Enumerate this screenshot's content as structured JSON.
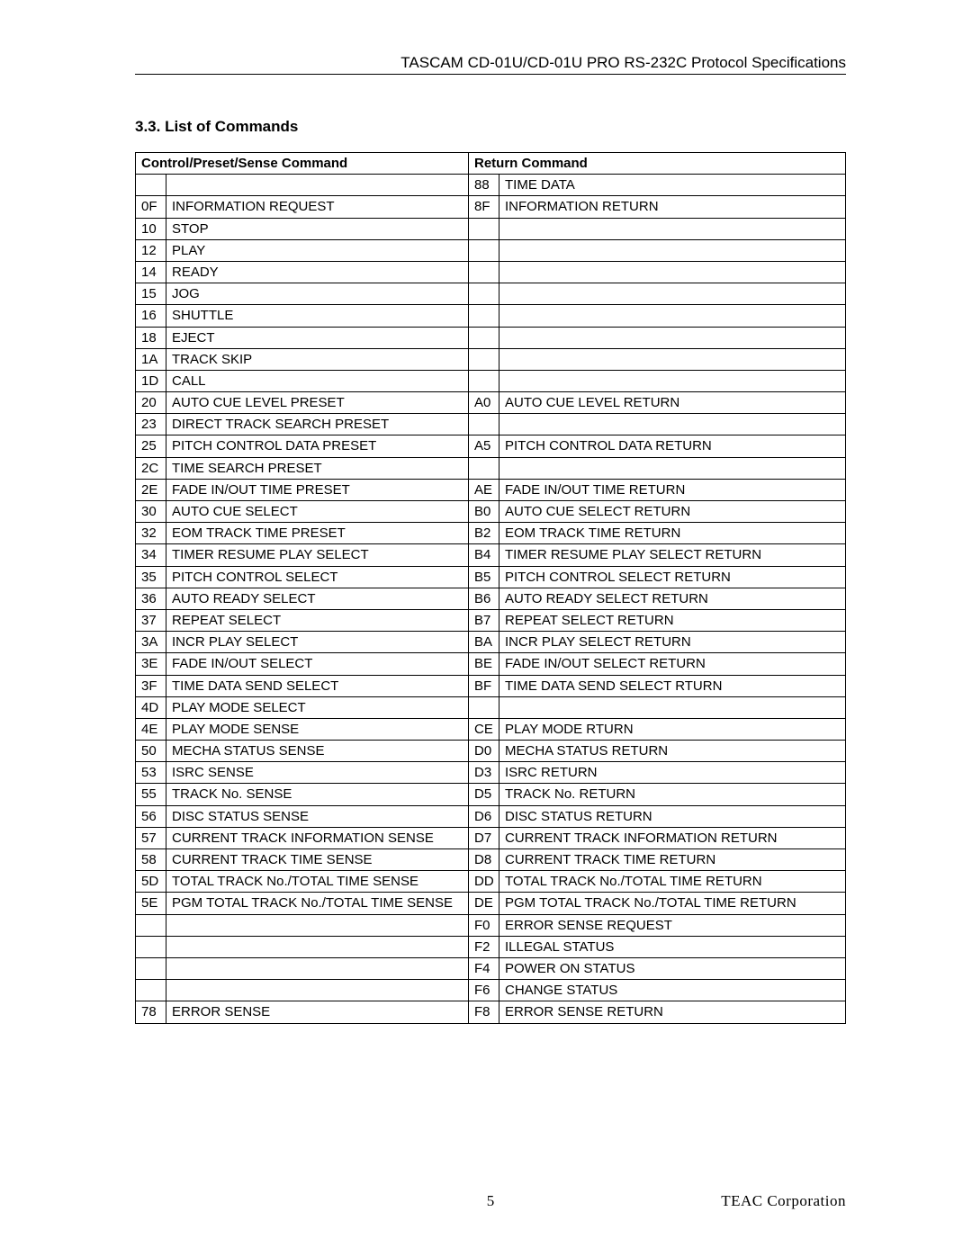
{
  "header": {
    "title": "TASCAM CD-01U/CD-01U PRO RS-232C Protocol Specifications"
  },
  "section": {
    "number_title": "3.3. List of Commands"
  },
  "table": {
    "headers": {
      "left": "Control/Preset/Sense Command",
      "right": "Return Command"
    },
    "rows": [
      {
        "lc": "",
        "ln": "",
        "rc": "88",
        "rn": "TIME DATA"
      },
      {
        "lc": "0F",
        "ln": "INFORMATION REQUEST",
        "rc": "8F",
        "rn": "INFORMATION RETURN"
      },
      {
        "lc": "10",
        "ln": "STOP",
        "rc": "",
        "rn": ""
      },
      {
        "lc": "12",
        "ln": "PLAY",
        "rc": "",
        "rn": ""
      },
      {
        "lc": "14",
        "ln": "READY",
        "rc": "",
        "rn": ""
      },
      {
        "lc": "15",
        "ln": "JOG",
        "rc": "",
        "rn": ""
      },
      {
        "lc": "16",
        "ln": "SHUTTLE",
        "rc": "",
        "rn": ""
      },
      {
        "lc": "18",
        "ln": "EJECT",
        "rc": "",
        "rn": ""
      },
      {
        "lc": "1A",
        "ln": "TRACK SKIP",
        "rc": "",
        "rn": ""
      },
      {
        "lc": "1D",
        "ln": "CALL",
        "rc": "",
        "rn": ""
      },
      {
        "lc": "20",
        "ln": "AUTO CUE LEVEL PRESET",
        "rc": "A0",
        "rn": "AUTO CUE LEVEL RETURN"
      },
      {
        "lc": "23",
        "ln": "DIRECT TRACK SEARCH PRESET",
        "rc": "",
        "rn": ""
      },
      {
        "lc": "25",
        "ln": "PITCH CONTROL DATA PRESET",
        "rc": "A5",
        "rn": "PITCH CONTROL DATA RETURN"
      },
      {
        "lc": "2C",
        "ln": "TIME SEARCH PRESET",
        "rc": "",
        "rn": ""
      },
      {
        "lc": "2E",
        "ln": "FADE IN/OUT TIME PRESET",
        "rc": "AE",
        "rn": "FADE IN/OUT TIME RETURN"
      },
      {
        "lc": "30",
        "ln": "AUTO CUE SELECT",
        "rc": "B0",
        "rn": "AUTO CUE SELECT RETURN"
      },
      {
        "lc": "32",
        "ln": "EOM TRACK TIME PRESET",
        "rc": "B2",
        "rn": "EOM TRACK TIME RETURN"
      },
      {
        "lc": "34",
        "ln": "TIMER RESUME PLAY SELECT",
        "rc": "B4",
        "rn": "TIMER RESUME PLAY SELECT RETURN"
      },
      {
        "lc": "35",
        "ln": "PITCH CONTROL SELECT",
        "rc": "B5",
        "rn": "PITCH CONTROL SELECT RETURN"
      },
      {
        "lc": "36",
        "ln": "AUTO READY SELECT",
        "rc": "B6",
        "rn": "AUTO READY SELECT RETURN"
      },
      {
        "lc": "37",
        "ln": "REPEAT SELECT",
        "rc": "B7",
        "rn": "REPEAT SELECT RETURN"
      },
      {
        "lc": "3A",
        "ln": "INCR PLAY SELECT",
        "rc": "BA",
        "rn": "INCR PLAY SELECT RETURN"
      },
      {
        "lc": "3E",
        "ln": "FADE IN/OUT SELECT",
        "rc": "BE",
        "rn": "FADE IN/OUT SELECT RETURN"
      },
      {
        "lc": "3F",
        "ln": "TIME DATA SEND SELECT",
        "rc": "BF",
        "rn": "TIME DATA SEND SELECT RTURN"
      },
      {
        "lc": "4D",
        "ln": "PLAY MODE SELECT",
        "rc": "",
        "rn": ""
      },
      {
        "lc": "4E",
        "ln": "PLAY MODE SENSE",
        "rc": "CE",
        "rn": "PLAY MODE RTURN"
      },
      {
        "lc": "50",
        "ln": "MECHA STATUS SENSE",
        "rc": "D0",
        "rn": "MECHA STATUS RETURN"
      },
      {
        "lc": "53",
        "ln": "ISRC SENSE",
        "rc": "D3",
        "rn": "ISRC RETURN"
      },
      {
        "lc": "55",
        "ln": "TRACK No. SENSE",
        "rc": "D5",
        "rn": "TRACK No. RETURN"
      },
      {
        "lc": "56",
        "ln": "DISC STATUS SENSE",
        "rc": "D6",
        "rn": "DISC STATUS RETURN"
      },
      {
        "lc": "57",
        "ln": "CURRENT TRACK INFORMATION SENSE",
        "rc": "D7",
        "rn": "CURRENT TRACK INFORMATION RETURN"
      },
      {
        "lc": "58",
        "ln": "CURRENT TRACK TIME SENSE",
        "rc": "D8",
        "rn": "CURRENT TRACK TIME RETURN"
      },
      {
        "lc": "5D",
        "ln": "TOTAL TRACK No./TOTAL TIME SENSE",
        "rc": "DD",
        "rn": "TOTAL TRACK No./TOTAL TIME RETURN"
      },
      {
        "lc": "5E",
        "ln": "PGM TOTAL TRACK No./TOTAL TIME SENSE",
        "rc": "DE",
        "rn": "PGM TOTAL TRACK No./TOTAL TIME RETURN"
      },
      {
        "lc": "",
        "ln": "",
        "rc": "F0",
        "rn": "ERROR SENSE REQUEST"
      },
      {
        "lc": "",
        "ln": "",
        "rc": "F2",
        "rn": "ILLEGAL STATUS"
      },
      {
        "lc": "",
        "ln": "",
        "rc": "F4",
        "rn": "POWER ON STATUS"
      },
      {
        "lc": "",
        "ln": "",
        "rc": "F6",
        "rn": "CHANGE STATUS"
      },
      {
        "lc": "78",
        "ln": "ERROR SENSE",
        "rc": "F8",
        "rn": "ERROR SENSE RETURN"
      }
    ]
  },
  "footer": {
    "page_number": "5",
    "corporation": "TEAC Corporation"
  }
}
